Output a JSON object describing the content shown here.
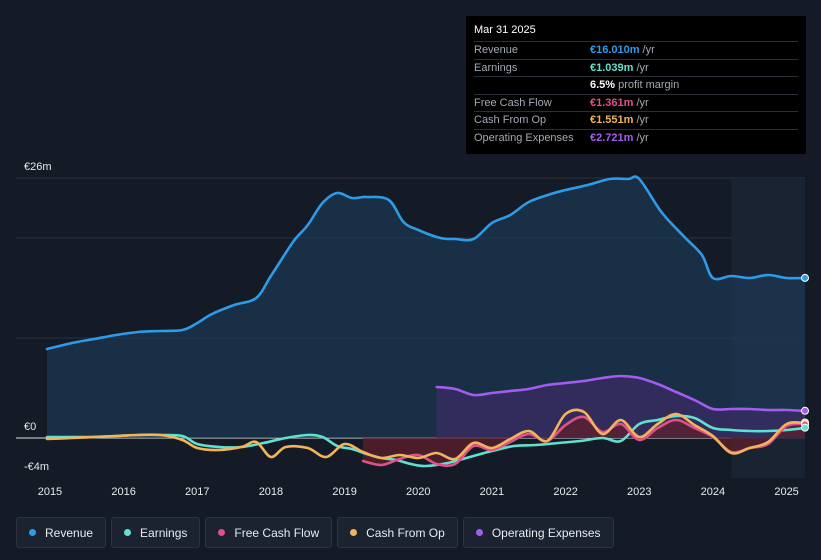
{
  "tooltip": {
    "date": "Mar 31 2025",
    "rows": [
      {
        "label": "Revenue",
        "value": "€16.010m",
        "unit": "/yr",
        "color": "#2e9be8"
      },
      {
        "label": "Earnings",
        "value": "€1.039m",
        "unit": "/yr",
        "color": "#5fe0d0"
      },
      {
        "label": "",
        "value": "6.5%",
        "unit": "profit margin",
        "color": "#ffffff"
      },
      {
        "label": "Free Cash Flow",
        "value": "€1.361m",
        "unit": "/yr",
        "color": "#e0508a"
      },
      {
        "label": "Cash From Op",
        "value": "€1.551m",
        "unit": "/yr",
        "color": "#f2b45a"
      },
      {
        "label": "Operating Expenses",
        "value": "€2.721m",
        "unit": "/yr",
        "color": "#a45cf0"
      }
    ]
  },
  "legend": [
    {
      "label": "Revenue",
      "color": "#2e9be8"
    },
    {
      "label": "Earnings",
      "color": "#5fe0d0"
    },
    {
      "label": "Free Cash Flow",
      "color": "#e0508a"
    },
    {
      "label": "Cash From Op",
      "color": "#f2b45a"
    },
    {
      "label": "Operating Expenses",
      "color": "#a45cf0"
    }
  ],
  "chart_data": {
    "type": "line",
    "title": "",
    "ylabel_top": "€26m",
    "ylabel_zero": "€0",
    "ylabel_bottom": "-€4m",
    "ylim": [
      -4,
      26
    ],
    "xlim": [
      2014.96,
      2025.25
    ],
    "forecast_start": 2024.25,
    "xticks": [
      {
        "value": 2015,
        "label": "2015"
      },
      {
        "value": 2016,
        "label": "2016"
      },
      {
        "value": 2017,
        "label": "2017"
      },
      {
        "value": 2018,
        "label": "2018"
      },
      {
        "value": 2019,
        "label": "2019"
      },
      {
        "value": 2020,
        "label": "2020"
      },
      {
        "value": 2021,
        "label": "2021"
      },
      {
        "value": 2022,
        "label": "2022"
      },
      {
        "value": 2023,
        "label": "2023"
      },
      {
        "value": 2024,
        "label": "2024"
      },
      {
        "value": 2025,
        "label": "2025"
      }
    ],
    "gridlines": [
      0,
      10,
      20,
      26
    ],
    "series": [
      {
        "name": "Revenue",
        "color": "#2e9be8",
        "fill": "#1d3f5e",
        "x": [
          2014.96,
          2015.3,
          2015.6,
          2015.9,
          2016.2,
          2016.5,
          2016.8,
          2017.0,
          2017.2,
          2017.5,
          2017.8,
          2018.0,
          2018.3,
          2018.5,
          2018.7,
          2018.9,
          2019.1,
          2019.3,
          2019.6,
          2019.8,
          2020.0,
          2020.3,
          2020.5,
          2020.75,
          2021.0,
          2021.25,
          2021.5,
          2021.8,
          2022.0,
          2022.3,
          2022.6,
          2022.85,
          2023.0,
          2023.3,
          2023.6,
          2023.85,
          2024.0,
          2024.25,
          2024.5,
          2024.75,
          2025.0,
          2025.25
        ],
        "values": [
          8.9,
          9.5,
          9.9,
          10.3,
          10.6,
          10.7,
          10.8,
          11.5,
          12.4,
          13.3,
          14.0,
          16.2,
          19.6,
          21.3,
          23.5,
          24.5,
          24.0,
          24.1,
          23.8,
          21.6,
          20.8,
          20.0,
          19.9,
          19.9,
          21.5,
          22.3,
          23.6,
          24.4,
          24.8,
          25.3,
          25.9,
          25.9,
          25.9,
          22.6,
          20.2,
          18.3,
          16.0,
          16.2,
          16.0,
          16.3,
          16.0,
          16.0
        ]
      },
      {
        "name": "Operating Expenses",
        "color": "#a45cf0",
        "fill": "#3a2c63",
        "x": [
          2020.25,
          2020.5,
          2020.75,
          2021.0,
          2021.25,
          2021.5,
          2021.75,
          2022.0,
          2022.25,
          2022.5,
          2022.75,
          2023.0,
          2023.25,
          2023.5,
          2023.75,
          2024.0,
          2024.25,
          2024.5,
          2024.75,
          2025.0,
          2025.25
        ],
        "values": [
          5.1,
          4.9,
          4.3,
          4.5,
          4.7,
          4.9,
          5.3,
          5.5,
          5.7,
          6.0,
          6.2,
          6.0,
          5.4,
          4.6,
          3.8,
          2.9,
          2.9,
          2.9,
          2.8,
          2.8,
          2.7
        ]
      },
      {
        "name": "Earnings",
        "color": "#5fe0d0",
        "fill": "",
        "x": [
          2014.96,
          2015.3,
          2015.6,
          2015.9,
          2016.2,
          2016.5,
          2016.8,
          2017.0,
          2017.3,
          2017.6,
          2017.9,
          2018.2,
          2018.5,
          2018.7,
          2018.9,
          2019.1,
          2019.3,
          2019.5,
          2019.7,
          2019.9,
          2020.1,
          2020.4,
          2020.7,
          2021.0,
          2021.3,
          2021.6,
          2021.9,
          2022.2,
          2022.5,
          2022.75,
          2023.0,
          2023.25,
          2023.5,
          2023.75,
          2024.0,
          2024.25,
          2024.5,
          2024.75,
          2025.0,
          2025.25
        ],
        "values": [
          0.1,
          0.1,
          0.1,
          0.2,
          0.3,
          0.3,
          0.2,
          -0.6,
          -0.9,
          -0.9,
          -0.5,
          0.0,
          0.3,
          0.1,
          -0.8,
          -1.1,
          -1.6,
          -2.0,
          -2.2,
          -2.6,
          -2.8,
          -2.5,
          -1.9,
          -1.3,
          -0.8,
          -0.7,
          -0.5,
          -0.3,
          0.0,
          -0.3,
          1.4,
          1.8,
          2.2,
          2.0,
          1.0,
          0.8,
          0.7,
          0.7,
          0.8,
          1.0
        ]
      },
      {
        "name": "Free Cash Flow",
        "color": "#e0508a",
        "fill": "#5e1f2e",
        "x": [
          2019.25,
          2019.5,
          2019.75,
          2020.0,
          2020.25,
          2020.5,
          2020.75,
          2021.0,
          2021.25,
          2021.5,
          2021.75,
          2022.0,
          2022.25,
          2022.5,
          2022.75,
          2023.0,
          2023.25,
          2023.5,
          2023.75,
          2024.0,
          2024.25,
          2024.5,
          2024.75,
          2025.0,
          2025.25
        ],
        "values": [
          -2.3,
          -2.7,
          -2.1,
          -1.7,
          -2.6,
          -2.6,
          -0.8,
          -1.2,
          -0.4,
          0.4,
          -0.3,
          1.3,
          2.1,
          0.6,
          1.4,
          -0.2,
          1.0,
          1.8,
          1.0,
          0.1,
          -1.4,
          -1.0,
          -0.6,
          1.2,
          1.4
        ]
      },
      {
        "name": "Cash From Op",
        "color": "#f2b45a",
        "fill": "",
        "x": [
          2014.96,
          2015.3,
          2015.6,
          2015.9,
          2016.2,
          2016.5,
          2016.8,
          2017.0,
          2017.3,
          2017.6,
          2017.8,
          2018.0,
          2018.2,
          2018.5,
          2018.75,
          2019.0,
          2019.25,
          2019.5,
          2019.75,
          2020.0,
          2020.25,
          2020.5,
          2020.75,
          2021.0,
          2021.25,
          2021.5,
          2021.75,
          2022.0,
          2022.25,
          2022.5,
          2022.75,
          2023.0,
          2023.25,
          2023.5,
          2023.75,
          2024.0,
          2024.25,
          2024.5,
          2024.75,
          2025.0,
          2025.25
        ],
        "values": [
          -0.1,
          0.0,
          0.1,
          0.2,
          0.3,
          0.3,
          -0.2,
          -1.0,
          -1.2,
          -0.9,
          -0.4,
          -1.9,
          -0.9,
          -1.0,
          -1.9,
          -0.6,
          -1.4,
          -2.0,
          -1.7,
          -2.0,
          -1.5,
          -2.1,
          -0.5,
          -1.0,
          -0.1,
          0.7,
          -0.3,
          2.4,
          2.6,
          0.4,
          1.8,
          0.1,
          1.4,
          2.4,
          1.3,
          0.2,
          -1.5,
          -1.0,
          -0.4,
          1.4,
          1.5
        ]
      }
    ],
    "end_markers": [
      {
        "series": "Revenue",
        "value": 16.01
      },
      {
        "series": "Operating Expenses",
        "value": 2.721
      },
      {
        "series": "Cash From Op",
        "value": 1.551
      },
      {
        "series": "Free Cash Flow",
        "value": 1.361
      },
      {
        "series": "Earnings",
        "value": 1.039
      }
    ]
  }
}
